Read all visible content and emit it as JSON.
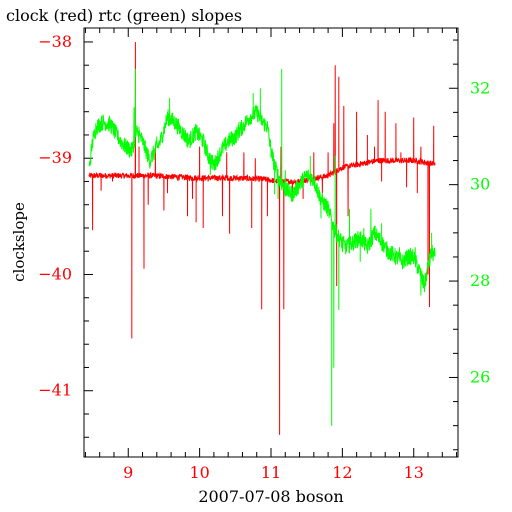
{
  "chart_data": {
    "type": "line",
    "title": "clock (red) rtc (green) slopes",
    "xlabel": "2007-07-08 boson",
    "ylabel": "clockslope",
    "xlim": [
      8.38,
      13.62
    ],
    "x_ticks": [
      "9",
      "10",
      "11",
      "12",
      "13"
    ],
    "y_left_lim": [
      -41.57,
      -37.88
    ],
    "y_left_ticks": [
      "-38",
      "-39",
      "-40",
      "-41"
    ],
    "y_right_lim": [
      24.35,
      33.25
    ],
    "y_right_ticks": [
      "32",
      "30",
      "28",
      "26"
    ],
    "colors": {
      "clock": "#ff0000",
      "rtc": "#00ff00",
      "axes": "#000000"
    },
    "series": [
      {
        "name": "clock",
        "axis": "left",
        "color": "#ff0000",
        "base": [
          [
            8.45,
            -39.15
          ],
          [
            9.0,
            -39.15
          ],
          [
            9.3,
            -39.15
          ],
          [
            10.0,
            -39.17
          ],
          [
            10.5,
            -39.17
          ],
          [
            10.9,
            -39.18
          ],
          [
            11.1,
            -39.2
          ],
          [
            11.4,
            -39.2
          ],
          [
            11.8,
            -39.15
          ],
          [
            12.0,
            -39.08
          ],
          [
            12.5,
            -39.02
          ],
          [
            13.0,
            -39.02
          ],
          [
            13.3,
            -39.05
          ]
        ],
        "spikes": [
          [
            8.5,
            -39.62
          ],
          [
            8.62,
            -39.28
          ],
          [
            8.78,
            -39.2
          ],
          [
            9.05,
            -40.55
          ],
          [
            9.1,
            -38.0
          ],
          [
            9.15,
            -38.9
          ],
          [
            9.22,
            -39.95
          ],
          [
            9.28,
            -39.4
          ],
          [
            9.38,
            -38.9
          ],
          [
            9.5,
            -39.45
          ],
          [
            9.55,
            -39.3
          ],
          [
            9.83,
            -39.5
          ],
          [
            9.9,
            -39.35
          ],
          [
            9.95,
            -39.55
          ],
          [
            10.0,
            -38.9
          ],
          [
            10.05,
            -39.6
          ],
          [
            10.12,
            -39.2
          ],
          [
            10.32,
            -39.5
          ],
          [
            10.38,
            -38.95
          ],
          [
            10.42,
            -39.65
          ],
          [
            10.55,
            -39.2
          ],
          [
            10.62,
            -38.95
          ],
          [
            10.73,
            -39.6
          ],
          [
            10.78,
            -39.0
          ],
          [
            10.87,
            -40.3
          ],
          [
            10.95,
            -39.5
          ],
          [
            11.05,
            -39.2
          ],
          [
            11.12,
            -41.38
          ],
          [
            11.14,
            -38.9
          ],
          [
            11.18,
            -40.3
          ],
          [
            11.3,
            -39.35
          ],
          [
            11.45,
            -39.35
          ],
          [
            11.6,
            -38.95
          ],
          [
            11.72,
            -39.3
          ],
          [
            11.8,
            -38.95
          ],
          [
            11.88,
            -38.7
          ],
          [
            11.9,
            -38.2
          ],
          [
            11.92,
            -40.1
          ],
          [
            11.95,
            -38.3
          ],
          [
            12.02,
            -38.55
          ],
          [
            12.08,
            -39.5
          ],
          [
            12.2,
            -38.6
          ],
          [
            12.35,
            -38.8
          ],
          [
            12.45,
            -38.9
          ],
          [
            12.5,
            -38.5
          ],
          [
            12.55,
            -39.2
          ],
          [
            12.6,
            -38.6
          ],
          [
            12.75,
            -38.7
          ],
          [
            12.82,
            -38.95
          ],
          [
            12.9,
            -39.25
          ],
          [
            13.0,
            -38.65
          ],
          [
            13.05,
            -39.3
          ],
          [
            13.1,
            -38.9
          ],
          [
            13.2,
            -40.0
          ],
          [
            13.22,
            -40.28
          ],
          [
            13.28,
            -38.72
          ]
        ]
      },
      {
        "name": "rtc",
        "axis": "right",
        "color": "#00ff00",
        "base": [
          [
            8.45,
            30.3
          ],
          [
            8.5,
            30.9
          ],
          [
            8.55,
            31.2
          ],
          [
            8.65,
            31.3
          ],
          [
            8.75,
            31.25
          ],
          [
            8.85,
            31.0
          ],
          [
            8.95,
            30.8
          ],
          [
            9.05,
            30.7
          ],
          [
            9.12,
            31.1
          ],
          [
            9.2,
            30.9
          ],
          [
            9.3,
            30.5
          ],
          [
            9.45,
            30.9
          ],
          [
            9.55,
            31.4
          ],
          [
            9.65,
            31.3
          ],
          [
            9.75,
            31.1
          ],
          [
            9.85,
            30.9
          ],
          [
            9.95,
            31.1
          ],
          [
            10.05,
            30.9
          ],
          [
            10.12,
            30.6
          ],
          [
            10.2,
            30.4
          ],
          [
            10.3,
            30.7
          ],
          [
            10.4,
            30.9
          ],
          [
            10.5,
            31.0
          ],
          [
            10.6,
            31.2
          ],
          [
            10.7,
            31.4
          ],
          [
            10.8,
            31.5
          ],
          [
            10.88,
            31.3
          ],
          [
            10.95,
            31.2
          ],
          [
            11.0,
            30.7
          ],
          [
            11.05,
            30.4
          ],
          [
            11.12,
            30.1
          ],
          [
            11.2,
            29.9
          ],
          [
            11.3,
            29.8
          ],
          [
            11.4,
            30.0
          ],
          [
            11.5,
            30.2
          ],
          [
            11.6,
            30.1
          ],
          [
            11.7,
            29.7
          ],
          [
            11.8,
            29.5
          ],
          [
            11.88,
            29.1
          ],
          [
            11.95,
            28.9
          ],
          [
            12.05,
            28.7
          ],
          [
            12.15,
            28.8
          ],
          [
            12.25,
            28.9
          ],
          [
            12.35,
            28.7
          ],
          [
            12.45,
            29.0
          ],
          [
            12.55,
            28.8
          ],
          [
            12.65,
            28.6
          ],
          [
            12.75,
            28.5
          ],
          [
            12.85,
            28.4
          ],
          [
            12.92,
            28.5
          ],
          [
            13.0,
            28.5
          ],
          [
            13.08,
            28.2
          ],
          [
            13.15,
            27.9
          ],
          [
            13.2,
            28.3
          ],
          [
            13.25,
            28.6
          ],
          [
            13.3,
            28.5
          ]
        ],
        "spikes": [
          [
            9.08,
            31.6
          ],
          [
            9.1,
            32.4
          ],
          [
            9.15,
            31.2
          ],
          [
            9.4,
            31.0
          ],
          [
            9.58,
            31.8
          ],
          [
            9.8,
            31.0
          ],
          [
            10.15,
            30.2
          ],
          [
            10.42,
            31.0
          ],
          [
            10.55,
            31.3
          ],
          [
            10.75,
            31.9
          ],
          [
            10.85,
            32.0
          ],
          [
            11.05,
            29.8
          ],
          [
            11.1,
            29.7
          ],
          [
            11.15,
            32.4
          ],
          [
            11.2,
            30.3
          ],
          [
            11.55,
            30.6
          ],
          [
            11.7,
            29.3
          ],
          [
            11.85,
            25.0
          ],
          [
            11.88,
            26.2
          ],
          [
            11.9,
            30.6
          ],
          [
            11.95,
            27.4
          ],
          [
            12.0,
            28.6
          ],
          [
            12.1,
            29.5
          ],
          [
            12.25,
            28.4
          ],
          [
            12.3,
            29.1
          ],
          [
            12.4,
            29.5
          ],
          [
            12.55,
            29.2
          ],
          [
            12.8,
            28.7
          ],
          [
            13.02,
            28.7
          ],
          [
            13.1,
            27.7
          ],
          [
            13.18,
            28.0
          ],
          [
            13.25,
            29.0
          ]
        ]
      }
    ]
  }
}
